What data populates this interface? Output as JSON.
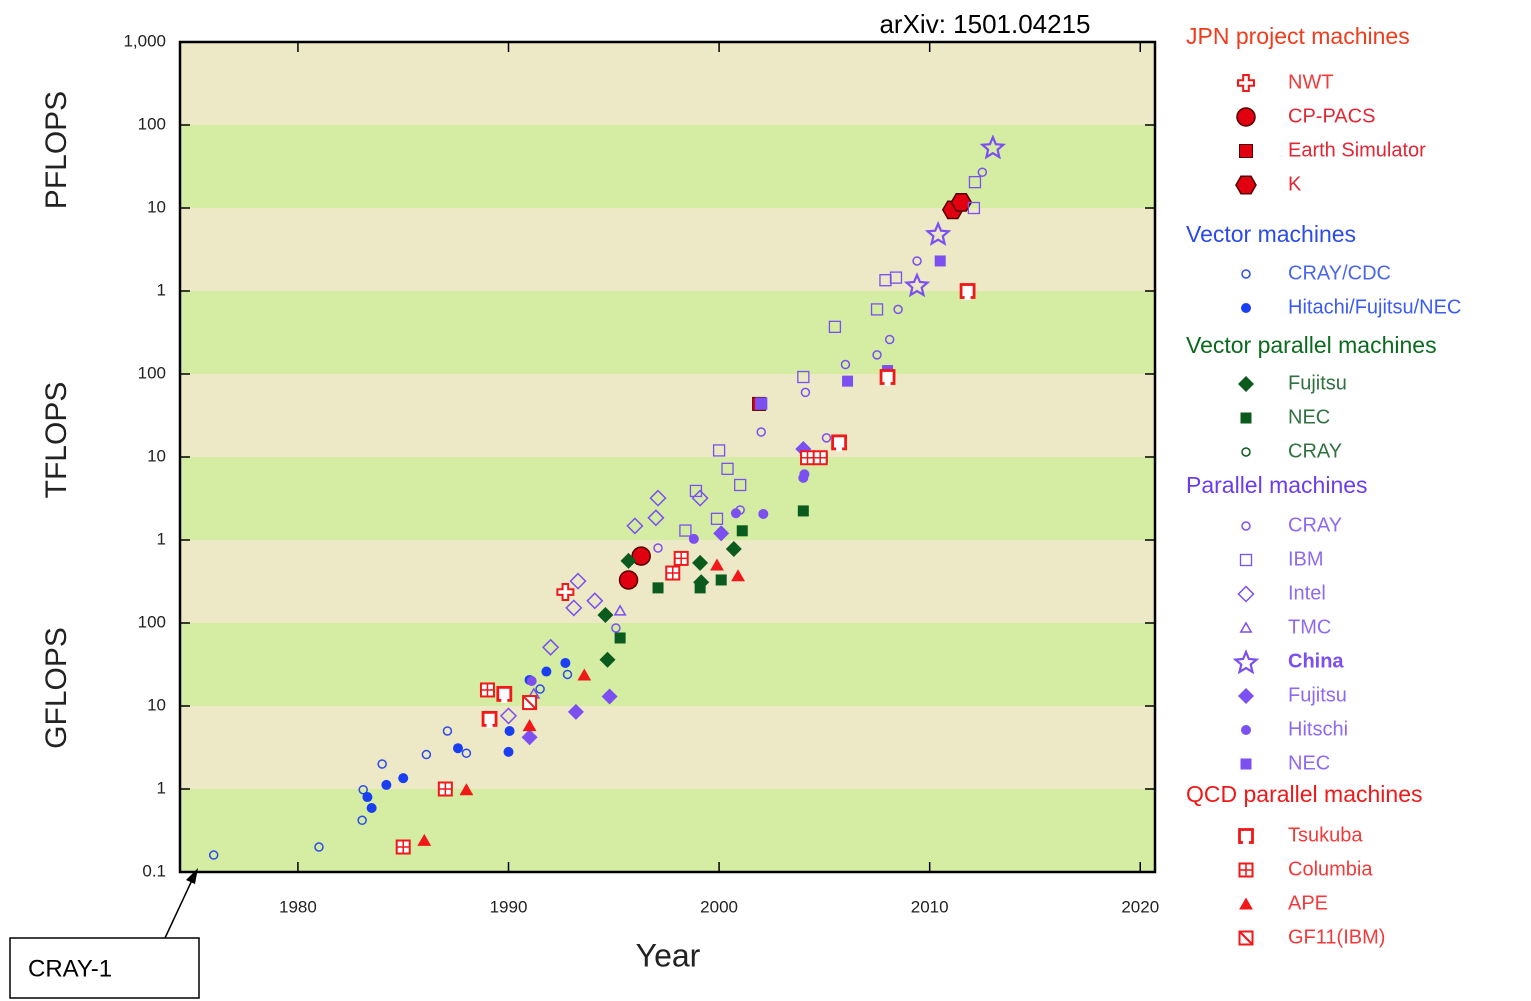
{
  "chart_data": {
    "type": "scatter",
    "title": "arXiv: 1501.04215",
    "x_label": "Year",
    "unit_labels": [
      "PFLOPS",
      "TFLOPS",
      "GFLOPS"
    ],
    "annotation": "CRAY-1",
    "log_y": true,
    "xlim": [
      1974.4,
      2020.7
    ],
    "ylim": [
      0.1,
      1000000000
    ],
    "xticks": [
      1980,
      1990,
      2000,
      2010,
      2020
    ],
    "yticks": [
      0.1,
      1,
      10,
      100,
      {
        "value": 1000,
        "label": "1"
      },
      {
        "value": 10000,
        "label": "10"
      },
      {
        "value": 100000,
        "label": "100"
      },
      {
        "value": 1000000,
        "label": "1"
      },
      {
        "value": 10000000,
        "label": "10"
      },
      {
        "value": 100000000,
        "label": "100"
      },
      {
        "value": 1000000000,
        "label": "1,000"
      }
    ],
    "grid_colors": [
      "#d4eda3",
      "#ede8c5"
    ],
    "groups": [
      {
        "title": "JPN project machines",
        "color": "#f03c1c",
        "series": [
          {
            "name": "NWT",
            "color": "#f01818",
            "marker": "plus",
            "x": [
              1992.7
            ],
            "values": [
              236
            ]
          },
          {
            "name": "CP-PACS",
            "color": "#e00010",
            "marker": "circle",
            "x": [
              1995.7,
              1996.3
            ],
            "values": [
              330,
              640
            ]
          },
          {
            "name": "Earth Simulator",
            "color": "#e00010",
            "marker": "square",
            "x": [
              2001.9
            ],
            "values": [
              43600
            ]
          },
          {
            "name": "K",
            "color": "#e00010",
            "marker": "hexagon",
            "x": [
              2011.1,
              2011.5
            ],
            "values": [
              9500000,
              11700000
            ]
          }
        ]
      },
      {
        "title": "Vector machines",
        "color": "#2a4be8",
        "series": [
          {
            "name": "CRAY/CDC",
            "color": "#2a4be8",
            "marker": "circle-open-small",
            "x": [
              1976.0,
              1981.0,
              1983.05,
              1983.1,
              1984.0,
              1986.1,
              1987.1,
              1988.0,
              1991.5,
              1992.8
            ],
            "values": [
              0.16,
              0.2,
              0.42,
              0.98,
              2.0,
              2.6,
              5.0,
              2.7,
              16,
              24
            ]
          },
          {
            "name": "Hitachi/Fujitsu/NEC",
            "color": "#1a3ff0",
            "marker": "dot",
            "x": [
              1983.3,
              1983.5,
              1984.2,
              1985.0,
              1987.6,
              1990.0,
              1990.05,
              1991.0,
              1991.8,
              1992.7
            ],
            "values": [
              0.8,
              0.59,
              1.12,
              1.35,
              3.1,
              2.8,
              5.0,
              20.6,
              26,
              33
            ]
          }
        ]
      },
      {
        "title": "Vector parallel machines",
        "color": "#0b6a1e",
        "series": [
          {
            "name": "Fujitsu",
            "color": "#0b5a1e",
            "marker": "diamond",
            "x": [
              1994.6,
              1994.7,
              1995.7,
              1999.1,
              1999.15,
              2000.7
            ],
            "values": [
              125,
              36,
              560,
              530,
              310,
              780
            ]
          },
          {
            "name": "NEC",
            "color": "#0b5a1e",
            "marker": "square-small",
            "x": [
              1995.3,
              1997.1,
              1999.1,
              2000.1,
              2001.1,
              2004.0,
              2004.9
            ],
            "values": [
              66,
              265,
              265,
              330,
              1290,
              2240,
              9800
            ]
          },
          {
            "name": "CRAY",
            "color": "#0b5a1e",
            "marker": "circle-open-small",
            "x": [
              2000.1
            ],
            "values": [
              1250
            ]
          }
        ]
      },
      {
        "title": "Parallel machines",
        "color": "#6a3cf0",
        "series": [
          {
            "name": "CRAY",
            "color": "#7b4ff0",
            "marker": "circle-open-small",
            "x": [
              1995.1,
              1997.1,
              2001.0,
              2002.0,
              2004.1,
              2005.1,
              2006.0,
              2007.5,
              2008.1,
              2008.5,
              2009.4,
              2012.5
            ],
            "values": [
              87,
              800,
              2300,
              20000,
              60000,
              17000,
              130000,
              170000,
              260000,
              600000,
              2300000,
              27000000
            ]
          },
          {
            "name": "IBM",
            "color": "#7b4ff0",
            "marker": "square-open",
            "x": [
              1998.4,
              1998.9,
              1999.9,
              2000.0,
              2000.4,
              2001.0,
              2002.0,
              2004.0,
              2005.5,
              2007.5,
              2007.9,
              2008.4,
              2012.1,
              2012.15
            ],
            "values": [
              1300,
              3900,
              1800,
              12000,
              7200,
              4600,
              44000,
              92000,
              370000,
              600000,
              1350000,
              1450000,
              10000000,
              20500000
            ]
          },
          {
            "name": "Intel",
            "color": "#7b4ff0",
            "marker": "diamond-open",
            "x": [
              1990.0,
              1992.0,
              1993.1,
              1993.3,
              1994.1,
              1996.0,
              1997.0,
              1997.1,
              1999.1
            ],
            "values": [
              7.6,
              51,
              152,
              320,
              185,
              1480,
              1850,
              3200,
              3200
            ]
          },
          {
            "name": "TMC",
            "color": "#7b4ff0",
            "marker": "triangle-open",
            "x": [
              1991.2,
              1995.3
            ],
            "values": [
              14,
              140
            ]
          },
          {
            "name": "China",
            "color": "#7b4ff0",
            "marker": "star-open",
            "bold": true,
            "x": [
              2013.0,
              2010.4,
              2009.4
            ],
            "values": [
              54000000,
              4900000,
              1180000
            ]
          },
          {
            "name": "Fujitsu",
            "color": "#7b4ff0",
            "marker": "diamond",
            "x": [
              1991.0,
              1993.2,
              1994.8,
              2000.1,
              2004.0
            ],
            "values": [
              4.2,
              8.5,
              13,
              1200,
              12500
            ]
          },
          {
            "name": "Hitschi",
            "color": "#7b4ff0",
            "marker": "dot",
            "x": [
              1991.1,
              1998.8,
              2000.8,
              2002.1,
              2004.0,
              2004.05
            ],
            "values": [
              20,
              1030,
              2100,
              2060,
              5600,
              6200
            ]
          },
          {
            "name": "NEC",
            "color": "#7b4ff0",
            "marker": "square-small",
            "x": [
              2002.0,
              2006.1,
              2008.0,
              2010.5
            ],
            "values": [
              44000,
              82000,
              110000,
              2300000
            ]
          }
        ]
      },
      {
        "title": "QCD parallel machines",
        "color": "#f01818",
        "series": [
          {
            "name": "Tsukuba",
            "color": "#f01818",
            "marker": "tsukuba",
            "x": [
              1989.1,
              1989.8,
              2005.7,
              2008.0,
              2011.8
            ],
            "values": [
              7.0,
              14,
              15000,
              92000,
              1000000
            ]
          },
          {
            "name": "Columbia",
            "color": "#f01818",
            "marker": "columbia",
            "x": [
              1985.0,
              1987.0,
              1989.0,
              1997.8,
              1998.2,
              2004.2,
              2004.8
            ],
            "values": [
              0.2,
              1.0,
              15.6,
              400,
              600,
              9800,
              9800
            ]
          },
          {
            "name": "APE",
            "color": "#f01818",
            "marker": "triangle",
            "x": [
              1986.0,
              1988.0,
              1991.0,
              1993.6,
              1999.9,
              2000.9
            ],
            "values": [
              0.24,
              0.98,
              5.8,
              23.6,
              500,
              370
            ]
          },
          {
            "name": "GF11(IBM)",
            "color": "#f01818",
            "marker": "gf11",
            "x": [
              1991.0
            ],
            "values": [
              11
            ]
          }
        ]
      }
    ]
  }
}
